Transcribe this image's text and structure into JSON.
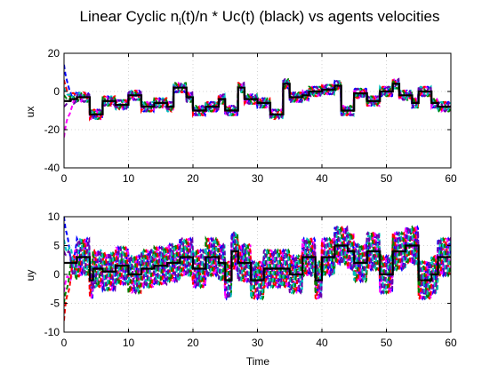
{
  "chart_data": {
    "type": "line",
    "title_main": "Linear Cyclic   n",
    "title_sub": "l",
    "title_rest": "(t)/n * Uc(t) (black) vs agents velocities",
    "panels": [
      {
        "ylabel": "ux",
        "xlabel": "",
        "xlim": [
          0,
          60
        ],
        "ylim": [
          -40,
          20
        ],
        "xticks": [
          0,
          10,
          20,
          30,
          40,
          50,
          60
        ],
        "yticks": [
          -40,
          -20,
          0,
          20
        ],
        "grid": true,
        "reference": {
          "color": "#000000",
          "x": [
            0,
            1,
            1,
            2,
            2,
            4,
            4,
            6,
            6,
            8,
            8,
            10,
            10,
            12,
            12,
            14,
            14,
            16,
            16,
            17,
            17,
            19,
            19,
            20,
            20,
            22,
            22,
            24,
            24,
            25,
            25,
            27,
            27,
            28,
            28,
            30,
            30,
            32,
            32,
            34,
            34,
            35,
            35,
            37,
            37,
            38,
            38,
            40,
            40,
            42,
            42,
            43,
            43,
            45,
            45,
            47,
            47,
            49,
            49,
            51,
            51,
            52,
            52,
            54,
            54,
            55,
            55,
            57,
            57,
            58,
            58,
            60
          ],
          "y": [
            -5,
            -5,
            -4,
            -4,
            -3,
            -3,
            -12,
            -12,
            -5,
            -5,
            -7,
            -7,
            -2,
            -2,
            -8,
            -8,
            -6,
            -6,
            -8,
            -8,
            2,
            2,
            -3,
            -3,
            -10,
            -10,
            -8,
            -8,
            -4,
            -4,
            -10,
            -10,
            2,
            2,
            -4,
            -4,
            -6,
            -6,
            -12,
            -12,
            4,
            4,
            -3,
            -3,
            -2,
            -2,
            0,
            0,
            1,
            1,
            3,
            3,
            -10,
            -10,
            -1,
            -1,
            -5,
            -5,
            0,
            0,
            4,
            4,
            -2,
            -2,
            -6,
            -6,
            0,
            0,
            -6,
            -6,
            -8,
            -8
          ]
        },
        "agents": [
          {
            "color": "#0000ff",
            "start": 14,
            "phase": 0.0
          },
          {
            "color": "#ff00ff",
            "start": -24,
            "phase": 1.2
          },
          {
            "color": "#ff0000",
            "start": 6,
            "phase": 2.1
          },
          {
            "color": "#008000",
            "start": -2,
            "phase": 3.0
          },
          {
            "color": "#00bfbf",
            "start": 2,
            "phase": 4.2
          },
          {
            "color": "#6a00a8",
            "start": -8,
            "phase": 5.1
          }
        ],
        "agent_amp": 2.5
      },
      {
        "ylabel": "uy",
        "xlabel": "Time",
        "xlim": [
          0,
          60
        ],
        "ylim": [
          -10,
          10
        ],
        "xticks": [
          0,
          10,
          20,
          30,
          40,
          50,
          60
        ],
        "yticks": [
          -10,
          -5,
          0,
          5,
          10
        ],
        "grid": true,
        "reference": {
          "color": "#000000",
          "x": [
            0,
            2,
            2,
            4,
            4,
            4.5,
            4.5,
            6,
            6,
            8,
            8,
            10,
            10,
            12,
            12,
            14,
            14,
            16,
            16,
            18,
            18,
            20,
            20,
            22,
            22,
            24,
            24,
            25,
            25,
            26,
            26,
            27,
            27,
            29,
            29,
            31,
            31,
            33,
            33,
            35,
            35,
            37,
            37,
            39,
            39,
            40,
            40,
            42,
            42,
            44,
            44,
            45,
            45,
            47,
            47,
            49,
            49,
            51,
            51,
            53,
            53,
            55,
            55,
            57,
            57,
            58,
            58,
            60
          ],
          "y": [
            2,
            2,
            3,
            3,
            -1,
            -1,
            1,
            1,
            0.5,
            0.5,
            1.5,
            1.5,
            0,
            0,
            1,
            1,
            1.5,
            1.5,
            2,
            2,
            3,
            3,
            1,
            1,
            3,
            3,
            2,
            2,
            -1,
            -1,
            4,
            4,
            2,
            2,
            -1,
            -1,
            1,
            1,
            1,
            1,
            0,
            0,
            3,
            3,
            -1,
            -1,
            3,
            3,
            5,
            5,
            4,
            4,
            2,
            2,
            4,
            4,
            0,
            0,
            4,
            4,
            5,
            5,
            -1,
            -1,
            0,
            0,
            3,
            3
          ]
        },
        "agents": [
          {
            "color": "#0000ff",
            "start": 10,
            "phase": 0.0
          },
          {
            "color": "#ff00ff",
            "start": -3,
            "phase": 1.0
          },
          {
            "color": "#ff0000",
            "start": -8,
            "phase": 2.1
          },
          {
            "color": "#008000",
            "start": -5,
            "phase": 3.1
          },
          {
            "color": "#00bfbf",
            "start": 6,
            "phase": 4.2
          },
          {
            "color": "#6a00a8",
            "start": 4,
            "phase": 5.2
          }
        ],
        "agent_amp": 3.2
      }
    ]
  }
}
